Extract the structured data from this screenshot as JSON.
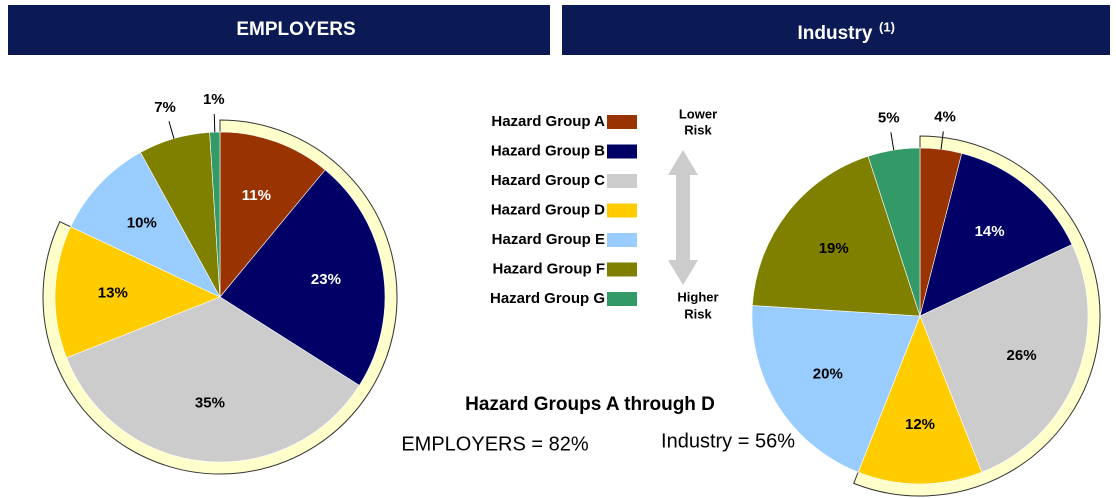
{
  "chart_data": [
    {
      "type": "pie",
      "title": "EMPLOYERS",
      "values": [
        11,
        23,
        35,
        13,
        10,
        7,
        1
      ],
      "value_labels": [
        "11%",
        "23%",
        "35%",
        "13%",
        "10%",
        "7%",
        "1%"
      ]
    },
    {
      "type": "pie",
      "title": "Industry",
      "title_note": "(1)",
      "values": [
        4,
        14,
        26,
        12,
        20,
        19,
        5
      ],
      "value_labels": [
        "4%",
        "14%",
        "26%",
        "12%",
        "20%",
        "19%",
        "5%"
      ]
    }
  ],
  "legend": {
    "labels": [
      "Hazard Group A",
      "Hazard Group B",
      "Hazard Group C",
      "Hazard Group D",
      "Hazard Group E",
      "Hazard Group F",
      "Hazard Group G"
    ],
    "colors": [
      "#993300",
      "#000066",
      "#cccccc",
      "#ffcc00",
      "#99ccff",
      "#808000",
      "#339966"
    ]
  },
  "risk": {
    "top": [
      "Lower",
      "Risk"
    ],
    "bottom": [
      "Higher",
      "Risk"
    ]
  },
  "annotation": {
    "title": "Hazard Groups A through D",
    "employers": "EMPLOYERS = 82%",
    "industry": "Industry = 56%"
  }
}
